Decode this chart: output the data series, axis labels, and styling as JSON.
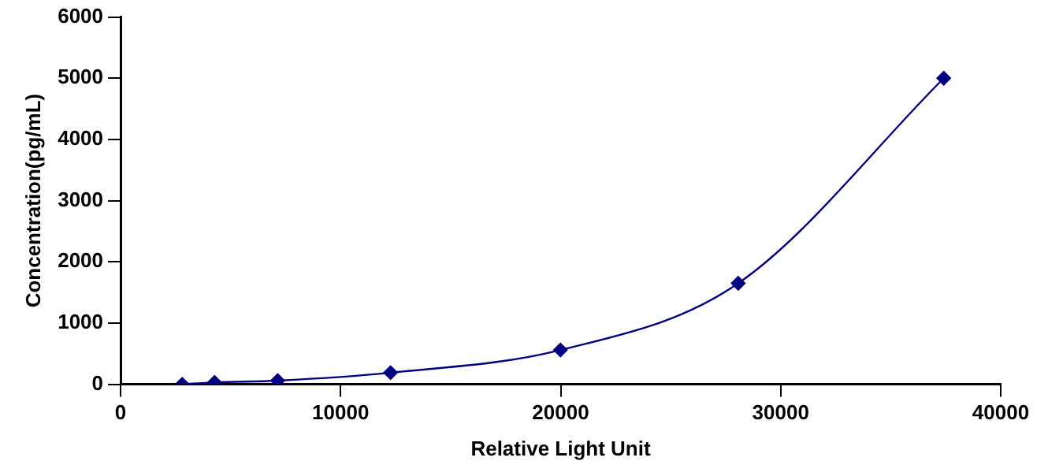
{
  "chart_data": {
    "type": "line",
    "xlabel": "Relative Light Unit",
    "ylabel": "Concentration(pg/mL)",
    "x": [
      2800,
      4270,
      7140,
      12270,
      19990,
      28070,
      37410
    ],
    "series": [
      {
        "color": "#000080",
        "values": [
          0,
          30,
          60,
          190,
          560,
          1650,
          5000
        ]
      }
    ],
    "xlim": [
      0,
      40000
    ],
    "xticks": [
      0,
      10000,
      20000,
      30000,
      40000
    ],
    "ylim": [
      0,
      6000
    ],
    "yticks": [
      0,
      1000,
      2000,
      3000,
      4000,
      5000,
      6000
    ],
    "grid": false,
    "legend": false,
    "marker": "diamond",
    "line_style": "solid"
  }
}
